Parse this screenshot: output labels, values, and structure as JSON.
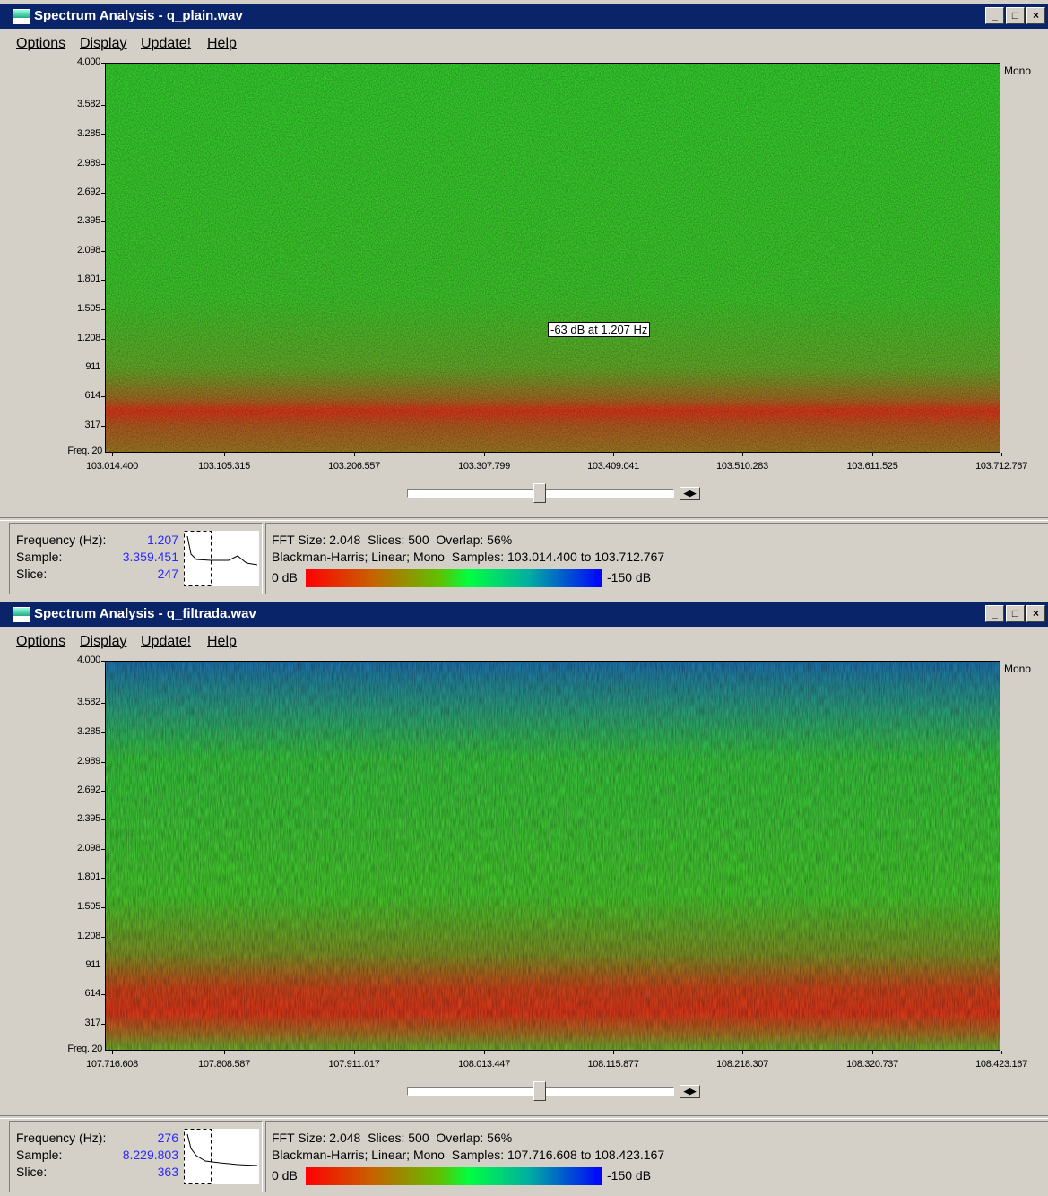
{
  "windows": [
    {
      "title": "Spectrum Analysis - q_plain.wav",
      "menu": [
        "Options",
        "Display",
        "Update!",
        "Help"
      ],
      "channel": "Mono",
      "y_ticks": [
        "4.000",
        "3.582",
        "3.285",
        "2.989",
        "2.692",
        "2.395",
        "2.098",
        "1.801",
        "1.505",
        "1.208",
        "911",
        "614",
        "317"
      ],
      "y_origin": "Freq. 20",
      "x_ticks": [
        "103.014.400",
        "103.105.315",
        "103.206.557",
        "103.307.799",
        "103.409.041",
        "103.510.283",
        "103.611.525",
        "103.712.767"
      ],
      "tooltip": "-63 dB at 1.207 Hz",
      "info": {
        "labels": [
          "Frequency (Hz):",
          "Sample:",
          "Slice:"
        ],
        "values": [
          "1.207",
          "3.359.451",
          "247"
        ]
      },
      "fft_line1": "FFT Size: 2.048  Slices: 500  Overlap: 56%",
      "fft_line2": "Blackman-Harris; Linear; Mono  Samples: 103.014.400 to 103.712.767",
      "scale_min": "0 dB",
      "scale_max": "-150 dB"
    },
    {
      "title": "Spectrum Analysis - q_filtrada.wav",
      "menu": [
        "Options",
        "Display",
        "Update!",
        "Help"
      ],
      "channel": "Mono",
      "y_ticks": [
        "4.000",
        "3.582",
        "3.285",
        "2.989",
        "2.692",
        "2.395",
        "2.098",
        "1.801",
        "1.505",
        "1.208",
        "911",
        "614",
        "317"
      ],
      "y_origin": "Freq. 20",
      "x_ticks": [
        "107.716.608",
        "107.808.587",
        "107.911.017",
        "108.013.447",
        "108.115.877",
        "108.218.307",
        "108.320.737",
        "108.423.167"
      ],
      "info": {
        "labels": [
          "Frequency (Hz):",
          "Sample:",
          "Slice:"
        ],
        "values": [
          "276",
          "8.229.803",
          "363"
        ]
      },
      "fft_line1": "FFT Size: 2.048  Slices: 500  Overlap: 56%",
      "fft_line2": "Blackman-Harris; Linear; Mono  Samples: 107.716.608 to 108.423.167",
      "scale_min": "0 dB",
      "scale_max": "-150 dB"
    }
  ]
}
